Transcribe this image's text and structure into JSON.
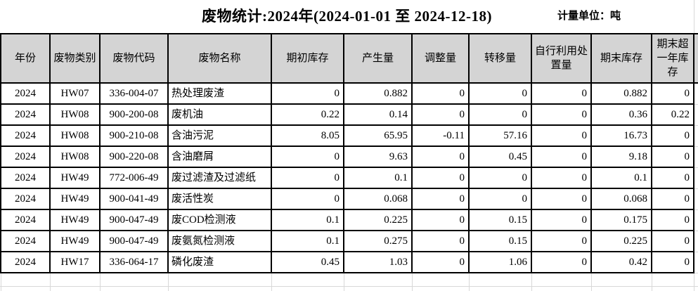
{
  "title": "废物统计:2024年(2024-01-01 至 2024-12-18)",
  "unit_label": "计量单位：吨",
  "table": {
    "columns": [
      "年份",
      "废物类别",
      "废物代码",
      "废物名称",
      "期初库存",
      "产生量",
      "调整量",
      "转移量",
      "自行利用处置量",
      "期末库存",
      "期末超一年库存"
    ],
    "rows": [
      [
        "2024",
        "HW07",
        "336-004-07",
        "热处理废渣",
        "0",
        "0.882",
        "0",
        "0",
        "0",
        "0.882",
        "0"
      ],
      [
        "2024",
        "HW08",
        "900-200-08",
        "废机油",
        "0.22",
        "0.14",
        "0",
        "0",
        "0",
        "0.36",
        "0.22"
      ],
      [
        "2024",
        "HW08",
        "900-210-08",
        "含油污泥",
        "8.05",
        "65.95",
        "-0.11",
        "57.16",
        "0",
        "16.73",
        "0"
      ],
      [
        "2024",
        "HW08",
        "900-220-08",
        "含油磨屑",
        "0",
        "9.63",
        "0",
        "0.45",
        "0",
        "9.18",
        "0"
      ],
      [
        "2024",
        "HW49",
        "772-006-49",
        "废过滤渣及过滤纸",
        "0",
        "0.1",
        "0",
        "0",
        "0",
        "0.1",
        "0"
      ],
      [
        "2024",
        "HW49",
        "900-041-49",
        "废活性炭",
        "0",
        "0.068",
        "0",
        "0",
        "0",
        "0.068",
        "0"
      ],
      [
        "2024",
        "HW49",
        "900-047-49",
        "废COD检测液",
        "0.1",
        "0.225",
        "0",
        "0.15",
        "0",
        "0.175",
        "0"
      ],
      [
        "2024",
        "HW49",
        "900-047-49",
        "废氨氮检测液",
        "0.1",
        "0.275",
        "0",
        "0.15",
        "0",
        "0.225",
        "0"
      ],
      [
        "2024",
        "HW17",
        "336-064-17",
        "磷化废渣",
        "0.45",
        "1.03",
        "0",
        "1.06",
        "0",
        "0.42",
        "0"
      ]
    ]
  },
  "colors": {
    "header_bg": "#d4d4d4",
    "table_border": "#000000",
    "grid_line": "#d8d8d8",
    "background": "#ffffff",
    "text": "#000000"
  }
}
